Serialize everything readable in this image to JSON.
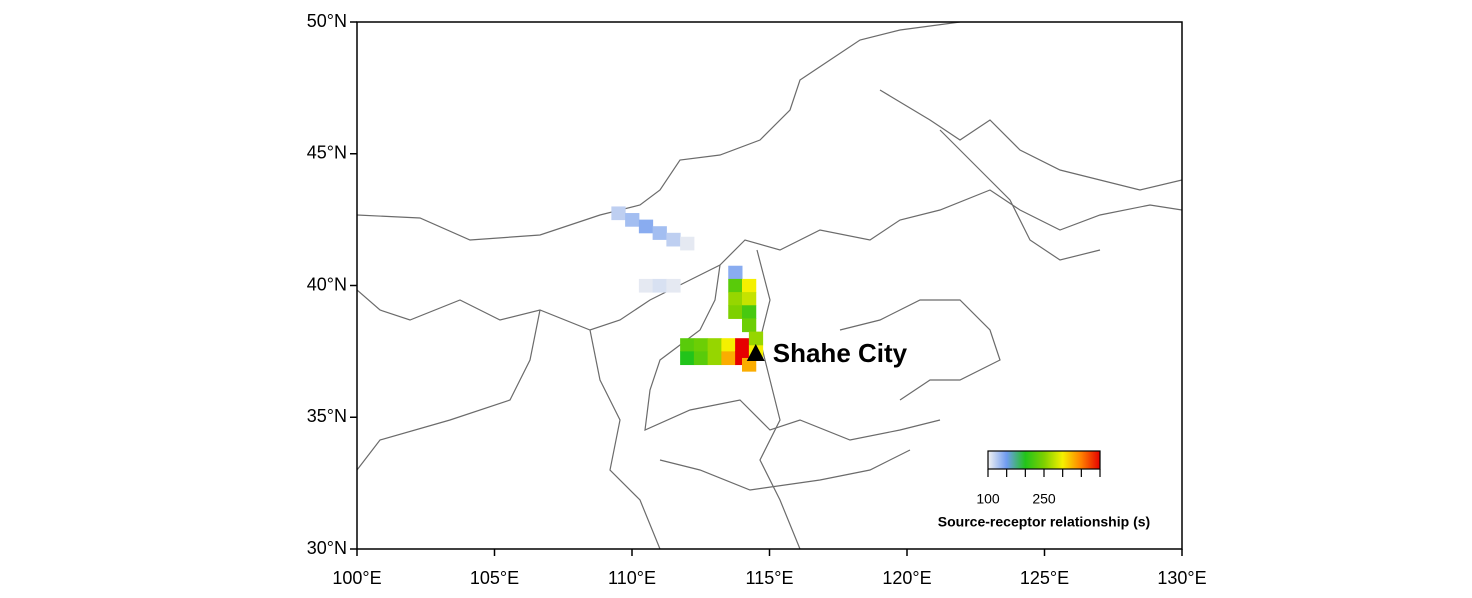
{
  "chart_data": {
    "type": "map",
    "xlim": [
      100,
      130
    ],
    "ylim": [
      30,
      50
    ],
    "xticks": [
      {
        "value": 100,
        "label": "100°E"
      },
      {
        "value": 105,
        "label": "105°E"
      },
      {
        "value": 110,
        "label": "110°E"
      },
      {
        "value": 115,
        "label": "115°E"
      },
      {
        "value": 120,
        "label": "120°E"
      },
      {
        "value": 125,
        "label": "125°E"
      },
      {
        "value": 130,
        "label": "130°E"
      }
    ],
    "yticks": [
      {
        "value": 30,
        "label": "30°N"
      },
      {
        "value": 35,
        "label": "35°N"
      },
      {
        "value": 40,
        "label": "40°N"
      },
      {
        "value": 45,
        "label": "45°N"
      },
      {
        "value": 50,
        "label": "50°N"
      }
    ],
    "site": {
      "name": "Shahe City",
      "lon": 114.5,
      "lat": 37.4
    },
    "cell_size": 0.5,
    "cells": {
      "lon": [
        109.5,
        110,
        110.5,
        111,
        111.5,
        112,
        110.5,
        111,
        111.5,
        113.75,
        113.75,
        114.25,
        113.75,
        114.25,
        113.75,
        114.25,
        114.25,
        112,
        112.5,
        113,
        113.5,
        112,
        112.5,
        113,
        113.5,
        114,
        114,
        114.5,
        114.25,
        114.5
      ],
      "lat": [
        42.75,
        42.5,
        42.25,
        42,
        41.75,
        41.6,
        40,
        40,
        40,
        40.5,
        40,
        40,
        39.5,
        39.5,
        39,
        39,
        38.5,
        37.75,
        37.75,
        37.75,
        37.75,
        37.25,
        37.25,
        37.25,
        37.25,
        37.75,
        37.25,
        37.5,
        37,
        38
      ],
      "values": [
        120,
        130,
        140,
        130,
        120,
        105,
        105,
        110,
        105,
        140,
        230,
        300,
        260,
        280,
        250,
        220,
        240,
        230,
        240,
        260,
        300,
        200,
        230,
        260,
        330,
        400,
        400,
        300,
        330,
        260
      ]
    },
    "colorbar": {
      "label": "Source-receptor relationship (s)",
      "lim": [
        100,
        400
      ],
      "ticks": [
        100,
        150,
        200,
        250,
        300,
        350,
        400
      ],
      "labeled_ticks": [
        100,
        250
      ],
      "colors": [
        "#f2f2f2",
        "#6f9bf0",
        "#22c41a",
        "#7ed000",
        "#f5f000",
        "#ff8000",
        "#e60000"
      ]
    }
  }
}
